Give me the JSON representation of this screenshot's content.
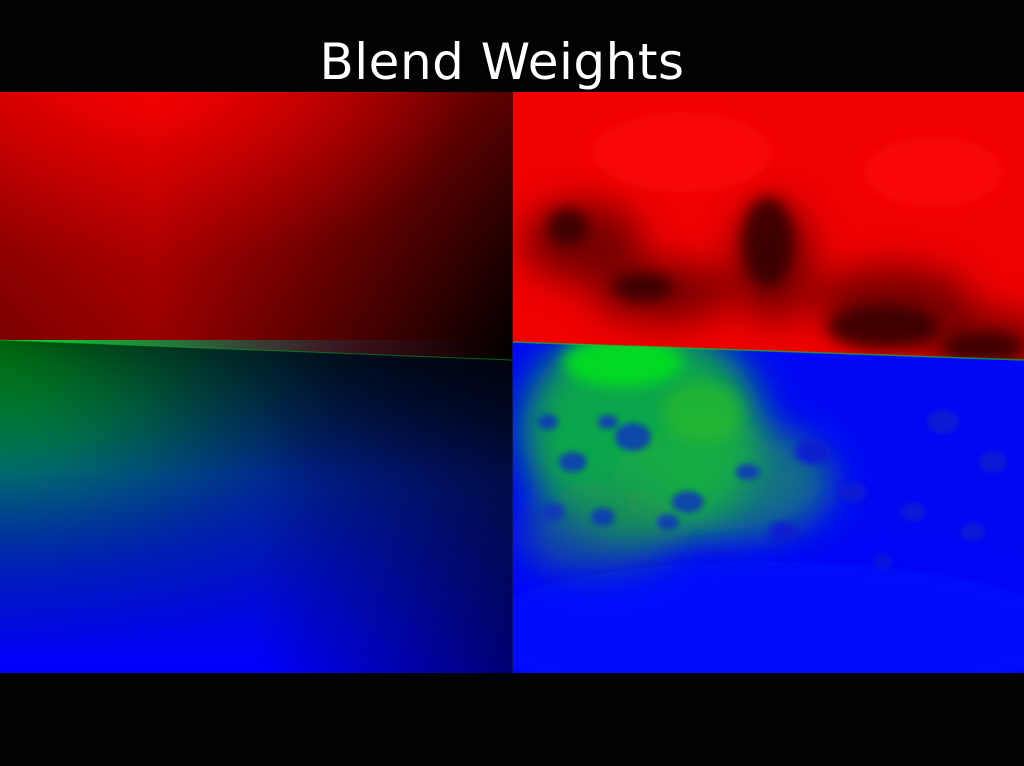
{
  "slide": {
    "title": "Blend Weights"
  },
  "panels": [
    {
      "id": "left",
      "style": "smooth-gradient"
    },
    {
      "id": "right",
      "style": "noisy"
    }
  ],
  "colors": {
    "background": "#020202",
    "title": "#ffffff",
    "red": "#ff0000",
    "green": "#00ff00",
    "blue": "#0000ff"
  }
}
